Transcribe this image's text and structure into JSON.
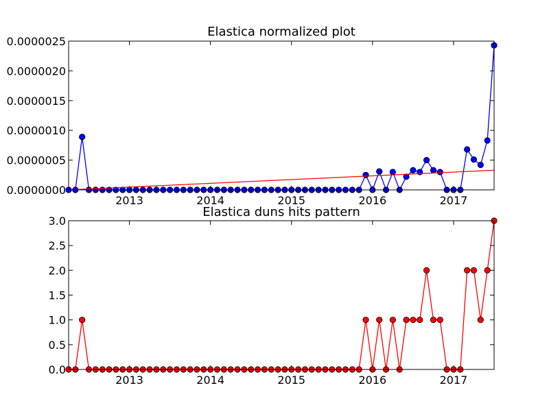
{
  "chart_data": [
    {
      "type": "line",
      "title": "Elastica normalized plot",
      "xlabel": "",
      "ylabel": "",
      "x": [
        "2012-04",
        "2012-05",
        "2012-06",
        "2012-07",
        "2012-08",
        "2012-09",
        "2012-10",
        "2012-11",
        "2012-12",
        "2013-01",
        "2013-02",
        "2013-03",
        "2013-04",
        "2013-05",
        "2013-06",
        "2013-07",
        "2013-08",
        "2013-09",
        "2013-10",
        "2013-11",
        "2013-12",
        "2014-01",
        "2014-02",
        "2014-03",
        "2014-04",
        "2014-05",
        "2014-06",
        "2014-07",
        "2014-08",
        "2014-09",
        "2014-10",
        "2014-11",
        "2014-12",
        "2015-01",
        "2015-02",
        "2015-03",
        "2015-04",
        "2015-05",
        "2015-06",
        "2015-07",
        "2015-08",
        "2015-09",
        "2015-10",
        "2015-11",
        "2015-12",
        "2016-01",
        "2016-02",
        "2016-03",
        "2016-04",
        "2016-05",
        "2016-06",
        "2016-07",
        "2016-08",
        "2016-09",
        "2016-10",
        "2016-11",
        "2016-12",
        "2017-01",
        "2017-02",
        "2017-03",
        "2017-04",
        "2017-05",
        "2017-06",
        "2017-07"
      ],
      "xlim": [
        "2012-04",
        "2017-07"
      ],
      "x_ticks": [
        "2013",
        "2014",
        "2015",
        "2016",
        "2017"
      ],
      "ylim": [
        0,
        2.5e-06
      ],
      "y_ticks": [
        "0.0000000",
        "0.0000005",
        "0.0000010",
        "0.0000015",
        "0.0000020",
        "0.0000025"
      ],
      "series": [
        {
          "color": "#0000ff",
          "marker": "circle",
          "values": [
            0,
            0,
            8.9e-07,
            0,
            0,
            0,
            0,
            0,
            0,
            0,
            0,
            0,
            0,
            0,
            0,
            0,
            0,
            0,
            0,
            0,
            0,
            0,
            0,
            0,
            0,
            0,
            0,
            0,
            0,
            0,
            0,
            0,
            0,
            0,
            0,
            0,
            0,
            0,
            0,
            0,
            0,
            0,
            0,
            0,
            2.5e-07,
            0,
            3.1e-07,
            0,
            3e-07,
            0,
            2.2e-07,
            3.3e-07,
            3e-07,
            5e-07,
            3.3e-07,
            3e-07,
            0,
            0,
            0,
            6.8e-07,
            5.1e-07,
            4.2e-07,
            8.3e-07,
            2.43e-06
          ]
        },
        {
          "color": "#ff0000",
          "marker": "none",
          "kind": "trend-line",
          "x": [
            "2012-04",
            "2017-07"
          ],
          "values": [
            0,
            3.3e-07
          ]
        }
      ]
    },
    {
      "type": "line",
      "title": "Elastica duns hits pattern",
      "xlabel": "",
      "ylabel": "",
      "x": [
        "2012-04",
        "2012-05",
        "2012-06",
        "2012-07",
        "2012-08",
        "2012-09",
        "2012-10",
        "2012-11",
        "2012-12",
        "2013-01",
        "2013-02",
        "2013-03",
        "2013-04",
        "2013-05",
        "2013-06",
        "2013-07",
        "2013-08",
        "2013-09",
        "2013-10",
        "2013-11",
        "2013-12",
        "2014-01",
        "2014-02",
        "2014-03",
        "2014-04",
        "2014-05",
        "2014-06",
        "2014-07",
        "2014-08",
        "2014-09",
        "2014-10",
        "2014-11",
        "2014-12",
        "2015-01",
        "2015-02",
        "2015-03",
        "2015-04",
        "2015-05",
        "2015-06",
        "2015-07",
        "2015-08",
        "2015-09",
        "2015-10",
        "2015-11",
        "2015-12",
        "2016-01",
        "2016-02",
        "2016-03",
        "2016-04",
        "2016-05",
        "2016-06",
        "2016-07",
        "2016-08",
        "2016-09",
        "2016-10",
        "2016-11",
        "2016-12",
        "2017-01",
        "2017-02",
        "2017-03",
        "2017-04",
        "2017-05",
        "2017-06",
        "2017-07"
      ],
      "xlim": [
        "2012-04",
        "2017-07"
      ],
      "x_ticks": [
        "2013",
        "2014",
        "2015",
        "2016",
        "2017"
      ],
      "ylim": [
        0,
        3.0
      ],
      "y_ticks": [
        "0.0",
        "0.5",
        "1.0",
        "1.5",
        "2.0",
        "2.5",
        "3.0"
      ],
      "series": [
        {
          "color": "#ff0000",
          "line_color": "#ff0000",
          "marker": "circle",
          "values": [
            0,
            0,
            1,
            0,
            0,
            0,
            0,
            0,
            0,
            0,
            0,
            0,
            0,
            0,
            0,
            0,
            0,
            0,
            0,
            0,
            0,
            0,
            0,
            0,
            0,
            0,
            0,
            0,
            0,
            0,
            0,
            0,
            0,
            0,
            0,
            0,
            0,
            0,
            0,
            0,
            0,
            0,
            0,
            0,
            1,
            0,
            1,
            0,
            1,
            0,
            1,
            1,
            1,
            2,
            1,
            1,
            0,
            0,
            0,
            2,
            2,
            1,
            2,
            3
          ]
        }
      ]
    }
  ]
}
